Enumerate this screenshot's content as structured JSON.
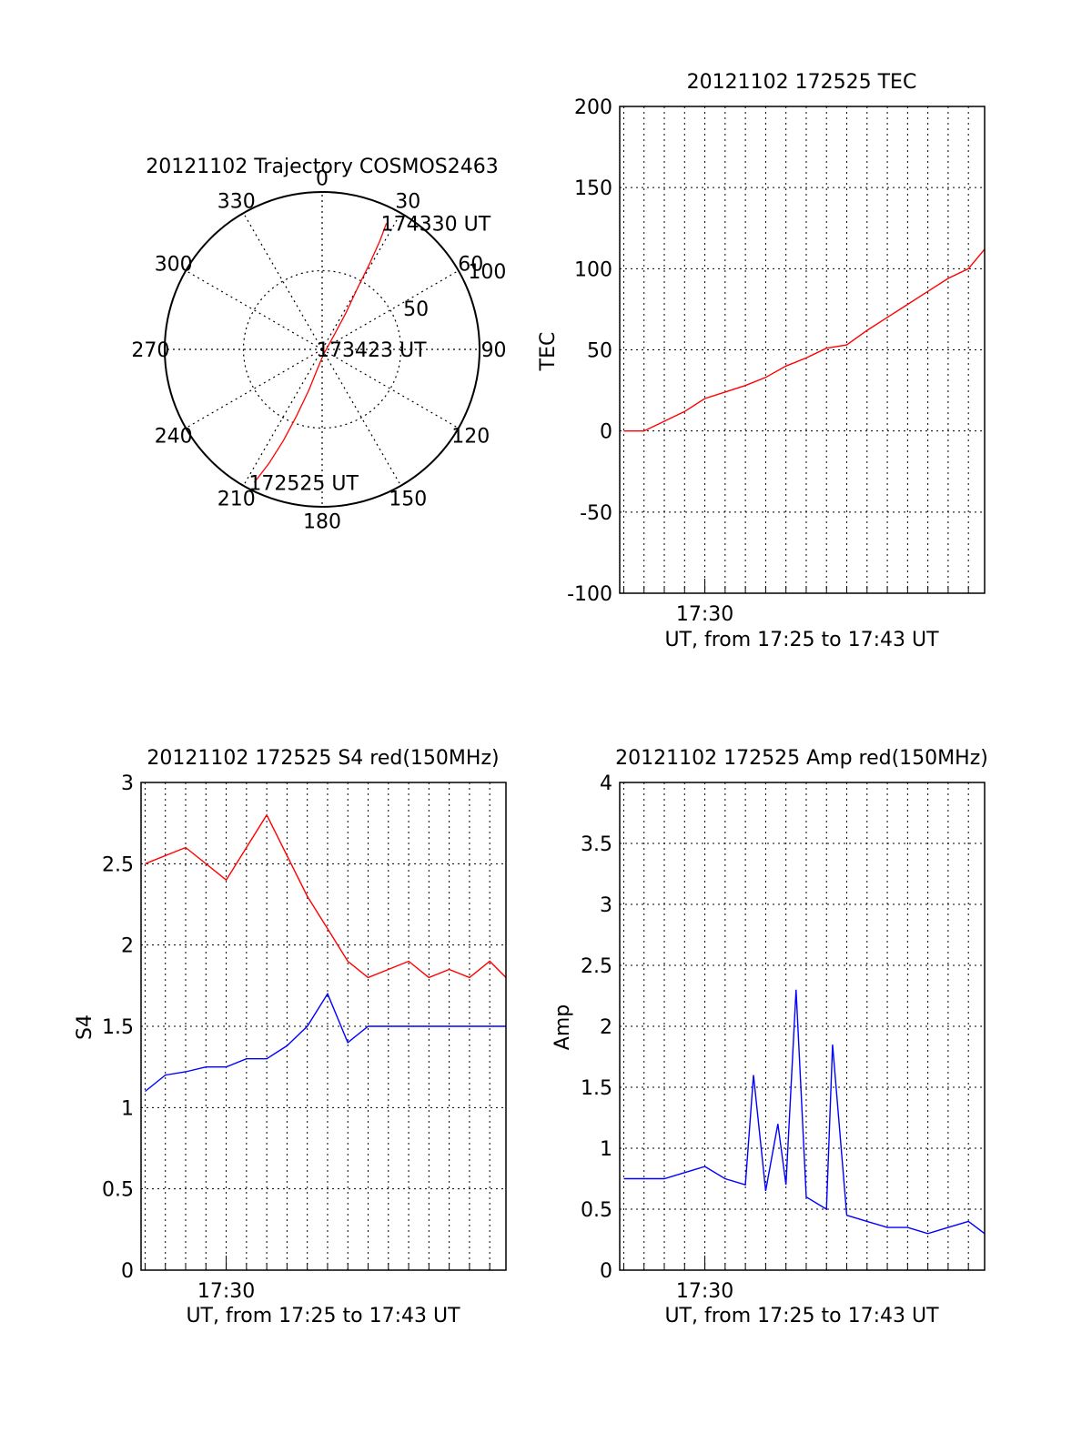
{
  "chart_data": [
    {
      "type": "polar",
      "title": "20121102 Trajectory COSMOS2463",
      "azimuth_labels": [
        "0",
        "30",
        "60",
        "90",
        "120",
        "150",
        "180",
        "210",
        "240",
        "270",
        "300",
        "330"
      ],
      "radial_labels": [
        "50",
        "100"
      ],
      "rmax": 100,
      "grid": true,
      "series": [
        {
          "color": "#ff0000",
          "points": [
            {
              "az": 207,
              "r": 95
            },
            {
              "az": 205,
              "r": 80
            },
            {
              "az": 203,
              "r": 63
            },
            {
              "az": 201,
              "r": 45
            },
            {
              "az": 198,
              "r": 27
            },
            {
              "az": 193,
              "r": 12
            },
            {
              "az": 160,
              "r": 3
            },
            {
              "az": 40,
              "r": 12
            },
            {
              "az": 33,
              "r": 28
            },
            {
              "az": 30,
              "r": 45
            },
            {
              "az": 29,
              "r": 62
            },
            {
              "az": 28,
              "r": 78
            },
            {
              "az": 27,
              "r": 90
            }
          ]
        }
      ],
      "annotations": [
        {
          "text": "174330 UT",
          "az": 27,
          "r": 90
        },
        {
          "text": "173423 UT",
          "az": 0,
          "r": 0
        },
        {
          "text": "172525 UT",
          "az": 207,
          "r": 95
        }
      ]
    },
    {
      "type": "line",
      "title": "20121102 172525 TEC",
      "xlabel": "UT, from 17:25 to 17:43 UT",
      "ylabel": "TEC",
      "x_range_min": [
        0.8,
        18.8
      ],
      "x_ticks": [
        {
          "value": 5,
          "label": "17:30"
        }
      ],
      "ylim": [
        -100,
        200
      ],
      "y_ticks": [
        -100,
        -50,
        0,
        50,
        100,
        150,
        200
      ],
      "grid": true,
      "series": [
        {
          "color": "#ff0000",
          "x": [
            1,
            2,
            3,
            4,
            5,
            6,
            7,
            8,
            9,
            10,
            11,
            12,
            13,
            14,
            15,
            16,
            17,
            18,
            18.8
          ],
          "y": [
            0,
            0,
            6,
            12,
            20,
            24,
            28,
            33,
            40,
            45,
            51,
            53,
            62,
            70,
            78,
            86,
            94,
            100,
            112
          ]
        }
      ]
    },
    {
      "type": "line",
      "title": "20121102 172525 S4 red(150MHz)",
      "xlabel": "UT, from 17:25 to 17:43 UT",
      "ylabel": "S4",
      "x_range_min": [
        0.8,
        18.8
      ],
      "x_ticks": [
        {
          "value": 5,
          "label": "17:30"
        }
      ],
      "ylim": [
        0,
        3
      ],
      "y_ticks": [
        0,
        0.5,
        1,
        1.5,
        2,
        2.5,
        3
      ],
      "grid": true,
      "series": [
        {
          "color": "#ff0000",
          "x": [
            1,
            3,
            5,
            7,
            9,
            10,
            11,
            12,
            13,
            14,
            15,
            16,
            17,
            18,
            18.8
          ],
          "y": [
            2.5,
            2.6,
            2.4,
            2.8,
            2.3,
            2.1,
            1.9,
            1.8,
            1.85,
            1.9,
            1.8,
            1.85,
            1.8,
            1.9,
            1.8
          ]
        },
        {
          "color": "#0000ff",
          "x": [
            1,
            2,
            3,
            4,
            5,
            6,
            7,
            8,
            9,
            10,
            11,
            12,
            13,
            14,
            15,
            16,
            17,
            18,
            18.8
          ],
          "y": [
            1.1,
            1.2,
            1.22,
            1.25,
            1.25,
            1.3,
            1.3,
            1.38,
            1.5,
            1.7,
            1.4,
            1.5,
            1.5,
            1.5,
            1.5,
            1.5,
            1.5,
            1.5,
            1.5
          ]
        }
      ]
    },
    {
      "type": "line",
      "title": "20121102 172525 Amp red(150MHz)",
      "xlabel": "UT, from 17:25 to 17:43 UT",
      "ylabel": "Amp",
      "x_range_min": [
        0.8,
        18.8
      ],
      "x_ticks": [
        {
          "value": 5,
          "label": "17:30"
        }
      ],
      "ylim": [
        0,
        4
      ],
      "y_ticks": [
        0,
        0.5,
        1,
        1.5,
        2,
        2.5,
        3,
        3.5,
        4
      ],
      "y_tick_labels": [
        "0",
        "0.5",
        "1",
        "1.5",
        "2",
        "2.5",
        "3",
        "3.5",
        "4"
      ],
      "grid": true,
      "series": [
        {
          "color": "#0000ff",
          "x": [
            1,
            2,
            3,
            4,
            5,
            6,
            7,
            7.4,
            8,
            8.6,
            9,
            9.5,
            10,
            11,
            11.3,
            12,
            13,
            14,
            15,
            16,
            17,
            18,
            18.8
          ],
          "y": [
            0.75,
            0.75,
            0.75,
            0.8,
            0.85,
            0.75,
            0.7,
            1.6,
            0.65,
            1.2,
            0.7,
            2.3,
            0.6,
            0.5,
            1.85,
            0.45,
            0.4,
            0.35,
            0.35,
            0.3,
            0.35,
            0.4,
            0.3
          ]
        }
      ]
    }
  ]
}
